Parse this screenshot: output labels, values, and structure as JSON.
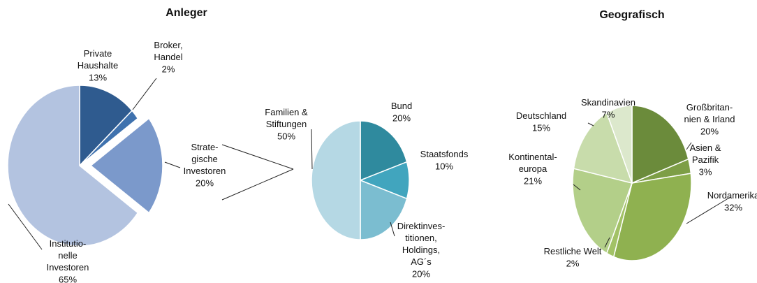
{
  "chart_data": [
    {
      "type": "pie",
      "title": "Anleger",
      "categories": [
        "Private\nHaushalte",
        "Broker,\nHandel",
        "Strate-\ngische\nInvestoren",
        "Institutio-\nnelle\nInvestoren"
      ],
      "values": [
        13,
        2,
        20,
        65
      ],
      "value_labels": [
        "13%",
        "2%",
        "20%",
        "65%"
      ],
      "colors": [
        "#2f5b8f",
        "#3f72ae",
        "#7b99cb",
        "#b3c3e0"
      ],
      "explode": [
        false,
        false,
        true,
        false
      ]
    },
    {
      "type": "pie",
      "categories": [
        "Bund",
        "Staatsfonds",
        "Direktinves-\ntitionen,\nHoldings,\nAG´s",
        "Familien &\nStiftungen"
      ],
      "values": [
        20,
        10,
        20,
        50
      ],
      "value_labels": [
        "20%",
        "10%",
        "20%",
        "50%"
      ],
      "colors": [
        "#2f8a9e",
        "#41a5be",
        "#7bbdd0",
        "#b5d8e4"
      ]
    },
    {
      "type": "pie",
      "title": "Geografisch",
      "categories": [
        "Großbritan-\nnien & Irland",
        "Asien &\nPazifik",
        "Nordamerika",
        "Restliche Welt",
        "Kontinental-\neuropa",
        "Deutschland",
        "Skandinavien"
      ],
      "values": [
        20,
        3,
        32,
        2,
        21,
        15,
        7
      ],
      "value_labels": [
        "20%",
        "3%",
        "32%",
        "2%",
        "21%",
        "15%",
        "7%"
      ],
      "colors": [
        "#6b8b3b",
        "#7d9e46",
        "#8fb150",
        "#a2c266",
        "#b3cf89",
        "#c8dcab",
        "#dce8cc"
      ]
    }
  ]
}
